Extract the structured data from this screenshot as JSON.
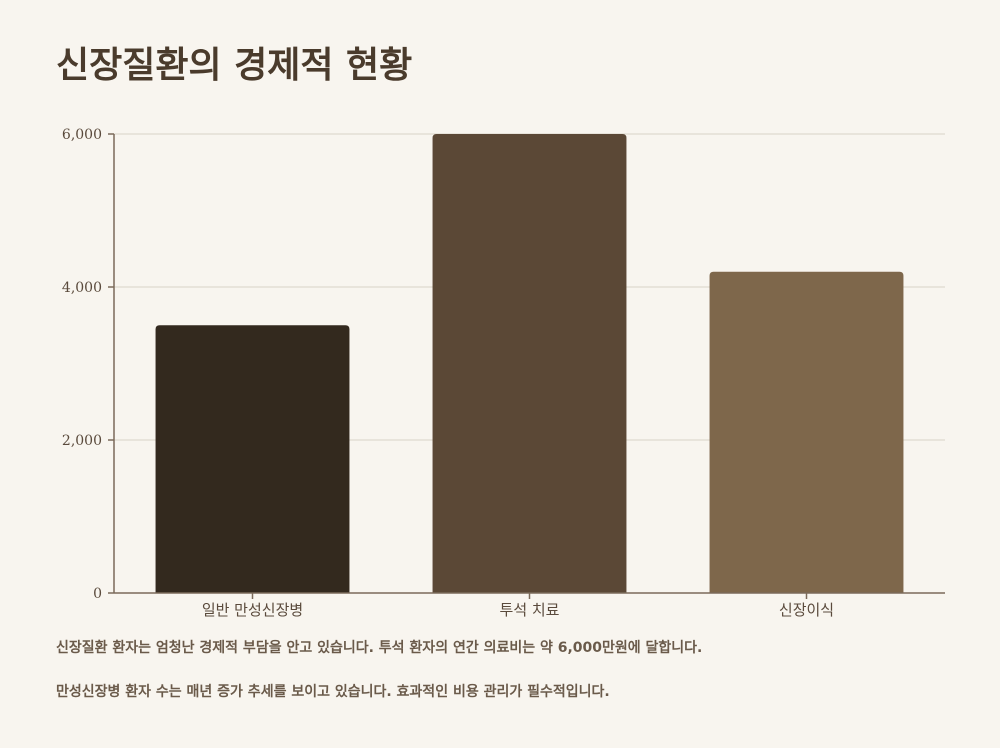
{
  "chart_data": {
    "type": "bar",
    "title": "신장질환의 경제적 현황",
    "categories": [
      "일반 만성신장병",
      "투석 치료",
      "신장이식"
    ],
    "values": [
      3500,
      6000,
      4200
    ],
    "colors": [
      "#33291e",
      "#5b4836",
      "#7e674b"
    ],
    "ylim": [
      0,
      6000
    ],
    "yticks": [
      0,
      2000,
      4000,
      6000
    ],
    "ytick_labels": [
      "0",
      "2,000",
      "4,000",
      "6,000"
    ],
    "grid": true,
    "xlabel": "",
    "ylabel": ""
  },
  "notes": [
    "신장질환 환자는 엄청난 경제적 부담을 안고 있습니다. 투석 환자의 연간 의료비는 약 6,000만원에 달합니다.",
    "만성신장병 환자 수는 매년 증가 추세를 보이고 있습니다. 효과적인 비용 관리가 필수적입니다."
  ]
}
